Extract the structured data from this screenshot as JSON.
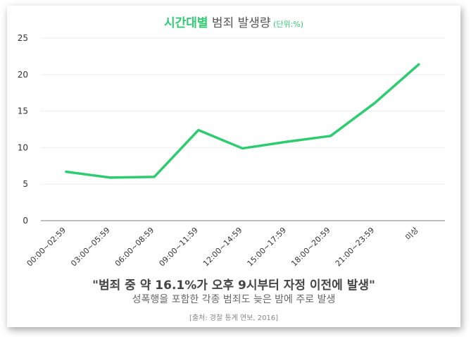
{
  "title": {
    "accent": "시간대별",
    "main": " 범죄 발생량",
    "unit": " (단위:%)"
  },
  "headline": "\"범죄 중 약 16.1%가 오후 9시부터 자정 이전에 발생\"",
  "subline": "성폭행을 포함한 각종 범죄도 늦은 밤에 주로 발생",
  "source": "[출처: 경찰 통계 연보, 2016]",
  "colors": {
    "line": "#2ecc71",
    "grid": "#eeeeee",
    "axis": "#333333"
  },
  "chart_data": {
    "type": "line",
    "title": "시간대별 범죄 발생량 (단위:%)",
    "categories": [
      "00:00~02:59",
      "03:00~05:59",
      "06:00~08:59",
      "09:00~11:59",
      "12:00~14:59",
      "15:00~17:59",
      "18:00~20:59",
      "21:00~23:59",
      "미상"
    ],
    "series": [
      {
        "values": [
          6.7,
          5.9,
          6.0,
          12.4,
          9.9,
          10.8,
          11.6,
          16.1,
          21.4
        ]
      }
    ],
    "ylim": [
      0,
      25
    ],
    "yticks": [
      0,
      5,
      10,
      15,
      20,
      25
    ],
    "grid": true,
    "legend": "none"
  }
}
